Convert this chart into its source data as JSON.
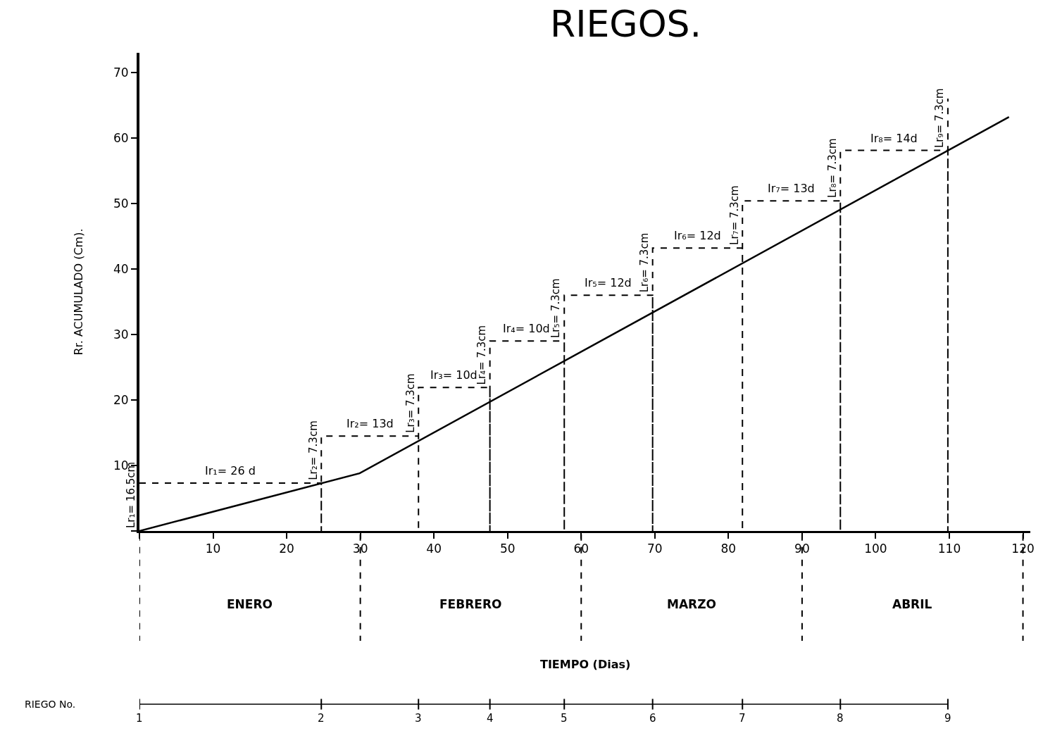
{
  "chart_data": [
    {
      "type": "line",
      "title": "RIEGOS.",
      "ylabel": "Rr. ACUMULADO (Cm).",
      "xlim": [
        0,
        121
      ],
      "ylim": [
        0,
        73
      ],
      "xticks": [
        {
          "value": 0,
          "label": null
        },
        10,
        20,
        30,
        40,
        50,
        60,
        70,
        80,
        90,
        100,
        110,
        120
      ],
      "yticks": [
        {
          "value": 0,
          "label": null
        },
        10,
        20,
        30,
        40,
        50,
        60,
        70
      ],
      "series": [
        {
          "type": "line",
          "color": "#000000",
          "line_style": "solid",
          "x": [
            0,
            29.9,
            118.1
          ],
          "values": [
            0,
            8.8,
            63.2
          ]
        },
        {
          "type": "line",
          "color": "#000000",
          "line_style": "dashed",
          "x": [
            0,
            24.7,
            24.7,
            24.7,
            37.9,
            37.9,
            37.9,
            47.6,
            47.6,
            47.6,
            57.7,
            57.7,
            57.7,
            69.7,
            69.7,
            69.7,
            81.9,
            81.9,
            81.9,
            95.2,
            95.2,
            95.2,
            109.8,
            109.8,
            109.8
          ],
          "values": [
            7.3,
            7.3,
            0,
            14.5,
            14.5,
            0,
            21.9,
            21.9,
            0,
            29.0,
            29.0,
            0,
            36.0,
            36.0,
            0,
            43.2,
            43.2,
            0,
            50.4,
            50.4,
            0,
            58.1,
            58.1,
            0,
            66
          ]
        }
      ],
      "annotations": [
        {
          "text": "Lr₁= 16.5cm",
          "x": 0,
          "y": 0
        },
        {
          "text": "Ir₁= 26 d",
          "x": 12.3,
          "y": 7.3
        },
        {
          "text": "Lr₂= 7.3cm",
          "x": 24.7,
          "y": 7.3
        },
        {
          "text": "Ir₂= 13d",
          "x": 31.3,
          "y": 14.5
        },
        {
          "text": "Lr₃= 7.3cm",
          "x": 37.9,
          "y": 14.5
        },
        {
          "text": "Ir₃= 10d",
          "x": 42.7,
          "y": 21.9
        },
        {
          "text": "Lr₄= 7.3cm",
          "x": 47.6,
          "y": 21.9
        },
        {
          "text": "Ir₄= 10d",
          "x": 52.6,
          "y": 29.0
        },
        {
          "text": "Lr₅= 7.3cm",
          "x": 57.7,
          "y": 29.0
        },
        {
          "text": "Ir₅= 12d",
          "x": 63.7,
          "y": 36.0
        },
        {
          "text": "Lr₆= 7.3cm",
          "x": 69.7,
          "y": 36.0
        },
        {
          "text": "Ir₆= 12d",
          "x": 75.8,
          "y": 43.2
        },
        {
          "text": "Lr₇= 7.3cm",
          "x": 81.9,
          "y": 43.2
        },
        {
          "text": "Ir₇= 13d",
          "x": 88.5,
          "y": 50.4
        },
        {
          "text": "Lr₈= 7.3cm",
          "x": 95.2,
          "y": 50.4
        },
        {
          "text": "Ir₈= 14d",
          "x": 102.5,
          "y": 58.1
        },
        {
          "text": "Lr₉= 7.3cm",
          "x": 109.8,
          "y": 58.1
        }
      ],
      "marker": "none",
      "grid": false,
      "legend": false
    },
    {
      "type": "other",
      "xlabel": "TIEMPO (Dias)",
      "categories": [
        "ENERO",
        "FEBRERO",
        "MARZO",
        "ABRIL"
      ]
    },
    {
      "type": "other",
      "xlabel": "RIEGO No.",
      "categories": [
        "1",
        "2",
        "3",
        "4",
        "5",
        "6",
        "7",
        "8",
        "9"
      ]
    }
  ]
}
